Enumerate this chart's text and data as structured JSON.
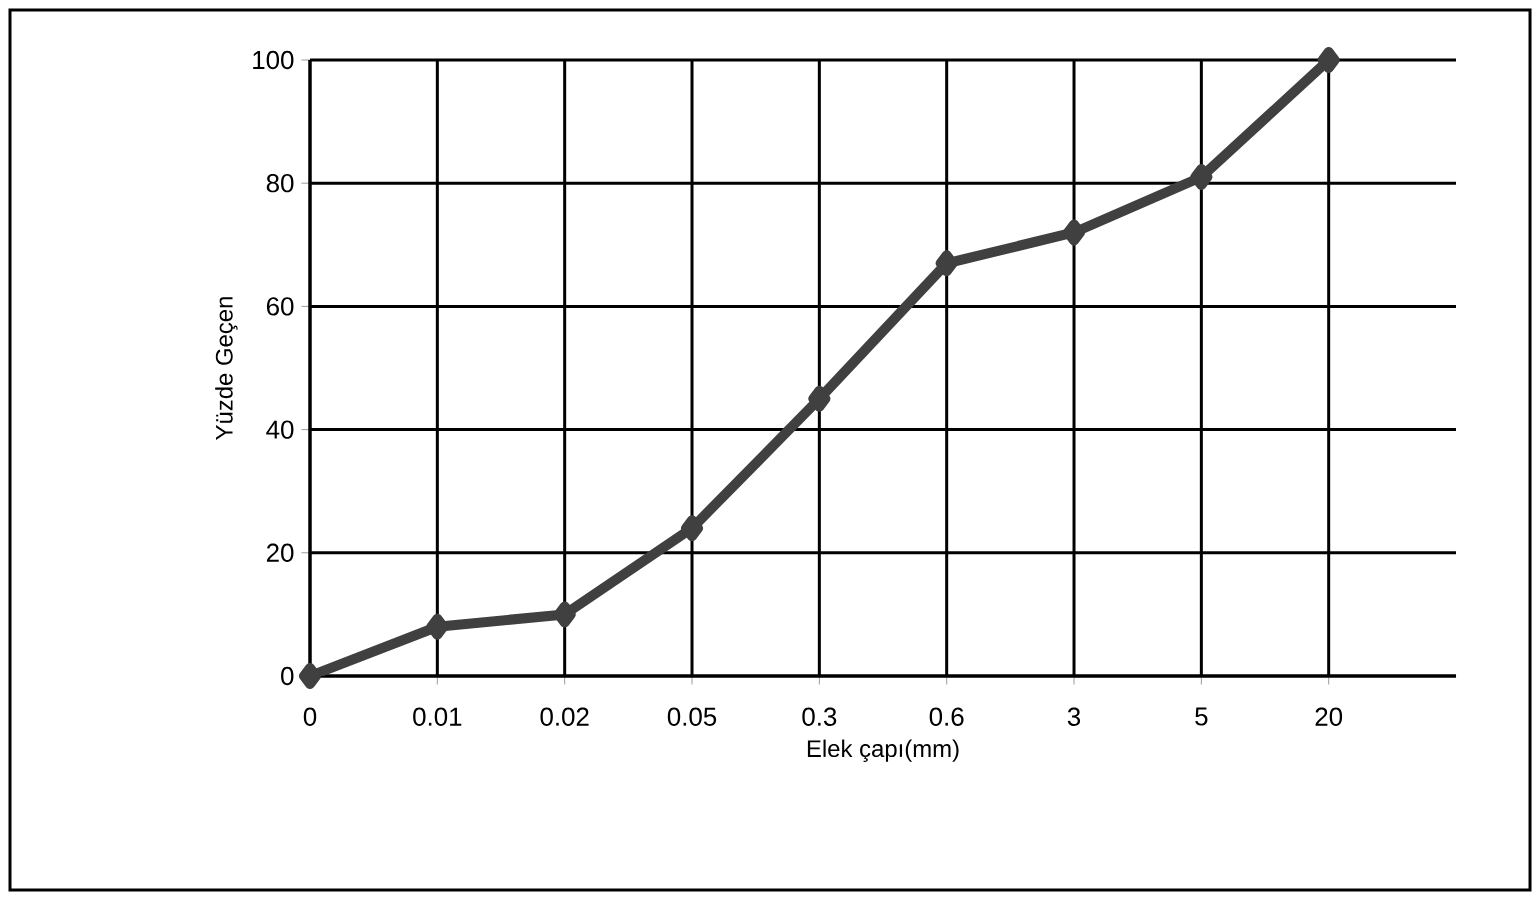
{
  "chart_data": {
    "type": "line",
    "xlabel": "Elek çapı(mm)",
    "ylabel": "Yüzde Geçen",
    "categories": [
      "0",
      "0.01",
      "0.02",
      "0.05",
      "0.3",
      "0.6",
      "3",
      "5",
      "20"
    ],
    "values": [
      0,
      8,
      10,
      24,
      45,
      67,
      72,
      81,
      100
    ],
    "color": "#404040",
    "ylim": [
      0,
      100
    ],
    "yticks": [
      0,
      20,
      40,
      60,
      80,
      100
    ],
    "grid": true,
    "marker": "diamond",
    "line_style": "solid"
  }
}
